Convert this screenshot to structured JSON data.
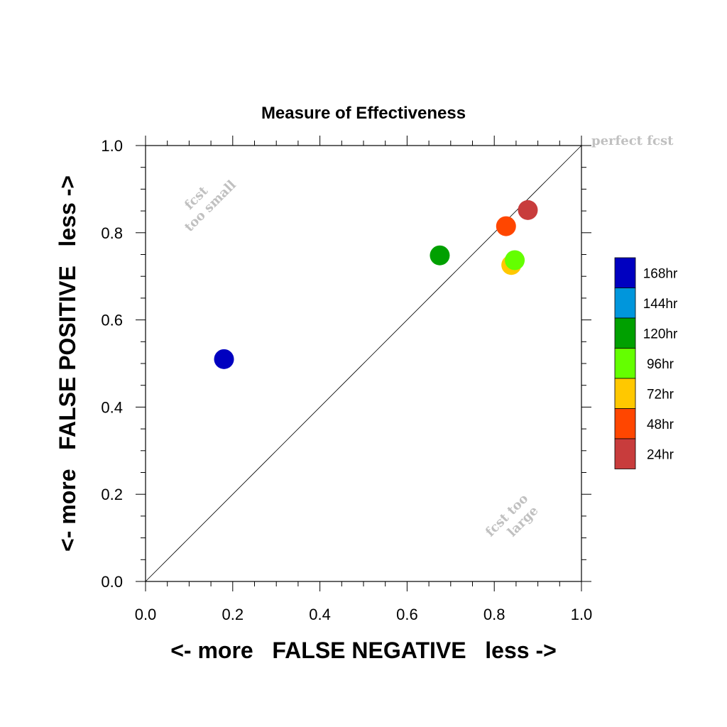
{
  "chart_data": {
    "type": "scatter",
    "title": "Measure of Effectiveness",
    "xlabel": "<- more   FALSE NEGATIVE   less ->",
    "ylabel": "<- more   FALSE POSITIVE   less ->",
    "xlim": [
      0,
      1
    ],
    "ylim": [
      0,
      1
    ],
    "xticks": [
      "0.0",
      "0.2",
      "0.4",
      "0.6",
      "0.8",
      "1.0"
    ],
    "yticks": [
      "0.0",
      "0.2",
      "0.4",
      "0.6",
      "0.8",
      "1.0"
    ],
    "grid": false,
    "diagonal_line": true,
    "legend_position": "right",
    "annotations": {
      "perfect": "perfect fcst",
      "small_line1": "fcst",
      "small_line2": "too small",
      "large_line1": "fcst too",
      "large_line2": "large"
    },
    "legend": [
      {
        "label": "168hr",
        "color": "#0000c0"
      },
      {
        "label": "144hr",
        "color": "#0096dc"
      },
      {
        "label": "120hr",
        "color": "#00a000"
      },
      {
        "label": "96hr",
        "color": "#64ff00"
      },
      {
        "label": "72hr",
        "color": "#ffc800"
      },
      {
        "label": "48hr",
        "color": "#ff4600"
      },
      {
        "label": "24hr",
        "color": "#c83c3c"
      }
    ],
    "series": [
      {
        "name": "168hr",
        "x": 0.18,
        "y": 0.51,
        "color": "#0000c0"
      },
      {
        "name": "120hr",
        "x": 0.675,
        "y": 0.748,
        "color": "#00a000"
      },
      {
        "name": "72hr",
        "x": 0.839,
        "y": 0.726,
        "color": "#ffc800"
      },
      {
        "name": "96hr",
        "x": 0.847,
        "y": 0.737,
        "color": "#64ff00"
      },
      {
        "name": "48hr",
        "x": 0.827,
        "y": 0.815,
        "color": "#ff4600"
      },
      {
        "name": "24hr",
        "x": 0.877,
        "y": 0.852,
        "color": "#c83c3c"
      }
    ]
  }
}
